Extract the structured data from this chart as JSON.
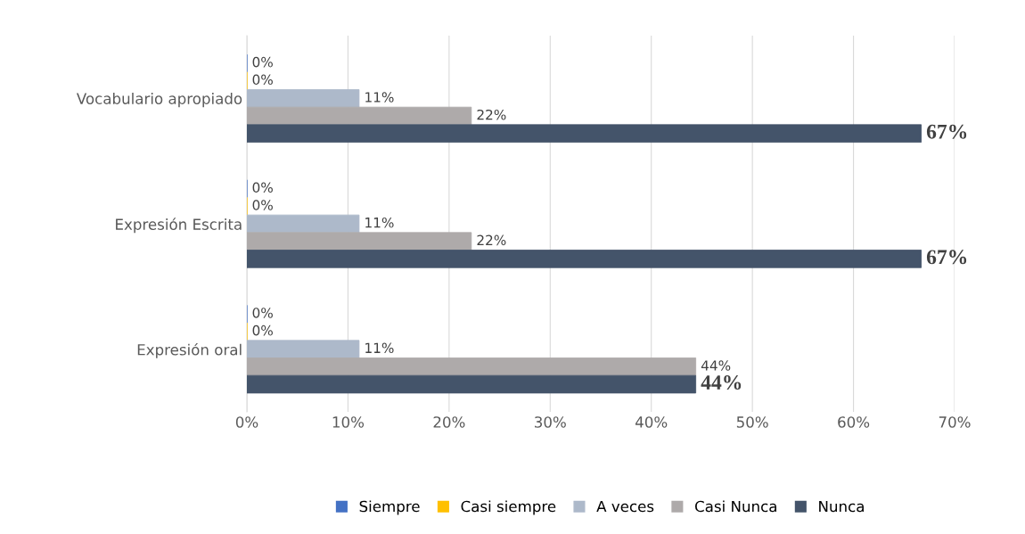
{
  "chart_data": {
    "type": "bar",
    "orientation": "horizontal",
    "categories": [
      "Vocabulario apropiado",
      "Expresión Escrita",
      "Expresión oral"
    ],
    "series": [
      {
        "name": "Siempre",
        "color": "#4472c4",
        "values": [
          0,
          0,
          0
        ],
        "value_labels": [
          "0%",
          "0%",
          "0%"
        ]
      },
      {
        "name": "Casi siempre",
        "color": "#ffc000",
        "values": [
          0,
          0,
          0
        ],
        "value_labels": [
          "0%",
          "0%",
          "0%"
        ]
      },
      {
        "name": "A veces",
        "color": "#adb9ca",
        "values": [
          11.1,
          11.1,
          11.1
        ],
        "value_labels": [
          "11%",
          "11%",
          "11%"
        ]
      },
      {
        "name": "Casi Nunca",
        "color": "#aeaaaa",
        "values": [
          22.2,
          22.2,
          44.4
        ],
        "value_labels": [
          "22%",
          "22%",
          "44%"
        ]
      },
      {
        "name": "Nunca",
        "color": "#44546a",
        "values": [
          66.7,
          66.7,
          44.4
        ],
        "value_labels": [
          "67%",
          "67%",
          "44%"
        ]
      }
    ],
    "xlim": [
      0,
      70
    ],
    "xticks": [
      {
        "value": 0,
        "label": "0%"
      },
      {
        "value": 10,
        "label": "10%"
      },
      {
        "value": 20,
        "label": "20%"
      },
      {
        "value": 30,
        "label": "30%"
      },
      {
        "value": 40,
        "label": "40%"
      },
      {
        "value": 50,
        "label": "50%"
      },
      {
        "value": 60,
        "label": "60%"
      },
      {
        "value": 70,
        "label": "70%"
      }
    ],
    "grid": "x",
    "legend": "bottom"
  }
}
